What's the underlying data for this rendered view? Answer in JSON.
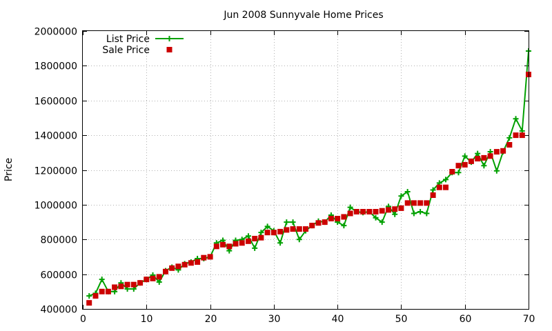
{
  "chart_data": {
    "type": "line",
    "title": "Jun 2008 Sunnyvale Home Prices",
    "xlabel": "",
    "ylabel": "Price",
    "xlim": [
      0,
      70
    ],
    "ylim": [
      400000,
      2000000
    ],
    "xticks": [
      0,
      10,
      20,
      30,
      40,
      50,
      60,
      70
    ],
    "yticks": [
      400000,
      600000,
      800000,
      1000000,
      1200000,
      1400000,
      1600000,
      1800000,
      2000000
    ],
    "grid": true,
    "legend_position": "top-left",
    "x": [
      1,
      2,
      3,
      4,
      5,
      6,
      7,
      8,
      9,
      10,
      11,
      12,
      13,
      14,
      15,
      16,
      17,
      18,
      19,
      20,
      21,
      22,
      23,
      24,
      25,
      26,
      27,
      28,
      29,
      30,
      31,
      32,
      33,
      34,
      35,
      36,
      37,
      38,
      39,
      40,
      41,
      42,
      43,
      44,
      45,
      46,
      47,
      48,
      49,
      50,
      51,
      52,
      53,
      54,
      55,
      56,
      57,
      58,
      59,
      60,
      61,
      62,
      63,
      64,
      65,
      66,
      67,
      68,
      69,
      70
    ],
    "series": [
      {
        "name": "List Price",
        "style": "line-plus",
        "color": "#00a000",
        "values": [
          475000,
          490000,
          570000,
          500000,
          500000,
          550000,
          515000,
          515000,
          550000,
          570000,
          595000,
          555000,
          620000,
          640000,
          625000,
          660000,
          670000,
          690000,
          690000,
          700000,
          780000,
          795000,
          735000,
          795000,
          800000,
          820000,
          750000,
          840000,
          875000,
          850000,
          780000,
          900000,
          900000,
          800000,
          850000,
          880000,
          905000,
          900000,
          940000,
          900000,
          880000,
          985000,
          960000,
          955000,
          960000,
          925000,
          900000,
          990000,
          945000,
          1050000,
          1075000,
          950000,
          960000,
          950000,
          1085000,
          1125000,
          1145000,
          1185000,
          1185000,
          1280000,
          1245000,
          1295000,
          1225000,
          1305000,
          1195000,
          1305000,
          1385000,
          1495000,
          1425000,
          1885000
        ]
      },
      {
        "name": "Sale Price",
        "style": "square-markers",
        "color": "#cc0000",
        "values": [
          435000,
          475000,
          500000,
          500000,
          525000,
          530000,
          540000,
          540000,
          550000,
          570000,
          575000,
          585000,
          615000,
          635000,
          645000,
          655000,
          665000,
          670000,
          695000,
          700000,
          760000,
          770000,
          760000,
          775000,
          780000,
          790000,
          805000,
          810000,
          840000,
          840000,
          845000,
          855000,
          860000,
          860000,
          860000,
          880000,
          895000,
          900000,
          920000,
          920000,
          930000,
          950000,
          960000,
          960000,
          960000,
          960000,
          965000,
          970000,
          975000,
          980000,
          1010000,
          1010000,
          1010000,
          1010000,
          1055000,
          1100000,
          1100000,
          1190000,
          1225000,
          1230000,
          1250000,
          1265000,
          1270000,
          1280000,
          1305000,
          1310000,
          1345000,
          1400000,
          1400000,
          1750000
        ]
      }
    ]
  }
}
